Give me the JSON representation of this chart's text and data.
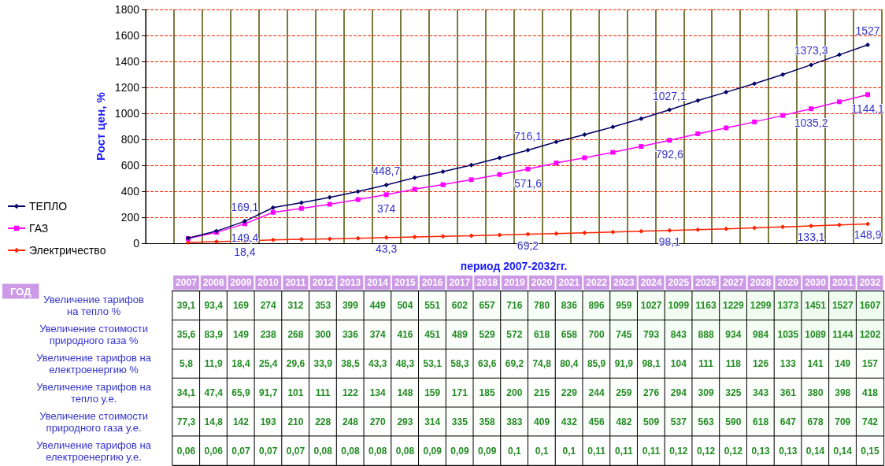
{
  "chart_data": [
    {
      "type": "line",
      "xlabel": "период 2007-2032гг.",
      "ylabel": "Рост цен, %",
      "categories": [
        null,
        null,
        null,
        null,
        null,
        null,
        null,
        null,
        null,
        null,
        null,
        null,
        null,
        null,
        null,
        null,
        null,
        null,
        null,
        null,
        null,
        null,
        null,
        null,
        null,
        null
      ],
      "series": [
        {
          "name": "ТЕПЛО",
          "color": "#000066",
          "marker": "diamond",
          "values": [
            null,
            39.1,
            93.4,
            169.1,
            274,
            312,
            353,
            399,
            448.7,
            504,
            551,
            602,
            657,
            716.1,
            780,
            836,
            896,
            959,
            1027.1,
            1099,
            1163,
            1229,
            1299,
            1373.3,
            1451,
            1527
          ],
          "value_labels": [
            null,
            null,
            null,
            "169,1",
            null,
            null,
            null,
            null,
            "448,7",
            null,
            null,
            null,
            null,
            "716,1",
            null,
            null,
            null,
            null,
            "1027,1",
            null,
            null,
            null,
            null,
            "1373,3",
            null,
            "1527"
          ]
        },
        {
          "name": "ГАЗ",
          "color": "#ff00ff",
          "marker": "square",
          "values": [
            null,
            35.6,
            83.9,
            149.4,
            238,
            268,
            300,
            336,
            374,
            416,
            451,
            489,
            529,
            571.6,
            618,
            658,
            700,
            745,
            792.6,
            843,
            888,
            934,
            984,
            1035.2,
            1089,
            1144.1
          ],
          "value_labels": [
            null,
            null,
            null,
            "149,4",
            null,
            null,
            null,
            null,
            "374",
            null,
            null,
            null,
            null,
            "571,6",
            null,
            null,
            null,
            null,
            "792,6",
            null,
            null,
            null,
            null,
            "1035,2",
            null,
            "1144,1"
          ]
        },
        {
          "name": "Электричество",
          "color": "#ff2200",
          "marker": "diamond",
          "values": [
            null,
            5.8,
            11.9,
            18.4,
            25.4,
            29.6,
            33.9,
            38.5,
            43.3,
            48.3,
            53.1,
            58.3,
            63.6,
            69.2,
            74.8,
            80.4,
            85.9,
            91.9,
            98.1,
            104,
            111,
            118,
            126,
            133.1,
            141,
            148.9
          ],
          "value_labels": [
            null,
            null,
            null,
            "18,4",
            null,
            null,
            null,
            null,
            "43,3",
            null,
            null,
            null,
            null,
            "69,2",
            null,
            null,
            null,
            null,
            "98,1",
            null,
            null,
            null,
            null,
            "133,1",
            null,
            "148,9"
          ]
        }
      ],
      "ylim": [
        0,
        1800
      ],
      "yticks": [
        0,
        200,
        400,
        600,
        800,
        1000,
        1200,
        1400,
        1600,
        1800
      ],
      "grid": true,
      "legend": "left",
      "tick_labels": "y",
      "line_style": "solid"
    },
    {
      "type": "heatmap",
      "xlabel": "ГОД",
      "categories": [
        "2007",
        "2008",
        "2009",
        "2010",
        "2011",
        "2012",
        "2013",
        "2014",
        "2015",
        "2016",
        "2017",
        "2018",
        "2019",
        "2020",
        "2021",
        "2022",
        "2023",
        "2024",
        "2025",
        "2026",
        "2027",
        "2028",
        "2029",
        "2030",
        "2031",
        "2032"
      ],
      "y_categories": [
        "Увеличение тарифов на тепло %",
        "Увеличение стоимости природного газа %",
        "Увеличение тарифов на електроенергию %",
        "Увеличение тарифов на тепло у.е.",
        "Увеличение стоимости природного газа у.е.",
        "Увеличение тарифов на електроенергию у.е."
      ],
      "cells": [
        [
          39.1,
          93.4,
          169,
          274,
          312,
          353,
          399,
          449,
          504,
          551,
          602,
          657,
          716,
          780,
          836,
          896,
          959,
          1027,
          1099,
          1163,
          1229,
          1299,
          1373,
          1451,
          1527,
          1607
        ],
        [
          35.6,
          83.9,
          149,
          238,
          268,
          300,
          336,
          374,
          416,
          451,
          489,
          529,
          572,
          618,
          658,
          700,
          745,
          793,
          843,
          888,
          934,
          984,
          1035,
          1089,
          1144,
          1202
        ],
        [
          5.8,
          11.9,
          18.4,
          25.4,
          29.6,
          33.9,
          38.5,
          43.3,
          48.3,
          53.1,
          58.3,
          63.6,
          69.2,
          74.8,
          80.4,
          85.9,
          91.9,
          98.1,
          104,
          111,
          118,
          126,
          133,
          141,
          149,
          157
        ],
        [
          34.1,
          47.4,
          65.9,
          91.7,
          101,
          111,
          122,
          134,
          148,
          159,
          171,
          185,
          200,
          215,
          229,
          244,
          259,
          276,
          294,
          309,
          325,
          343,
          361,
          380,
          398,
          418
        ],
        [
          77.3,
          14.8,
          142,
          193,
          210,
          228,
          248,
          270,
          293,
          314,
          335,
          358,
          383,
          409,
          432,
          456,
          482,
          509,
          537,
          563,
          590,
          618,
          647,
          678,
          709,
          742
        ],
        [
          0.06,
          0.06,
          0.07,
          0.07,
          0.07,
          0.08,
          0.08,
          0.08,
          0.08,
          0.09,
          0.09,
          0.09,
          0.1,
          0.1,
          0.1,
          0.11,
          0.11,
          0.11,
          0.12,
          0.12,
          0.12,
          0.13,
          0.13,
          0.14,
          0.14,
          0.15
        ]
      ],
      "cell_labels": [
        [
          "39,1",
          "93,4",
          "169",
          "274",
          "312",
          "353",
          "399",
          "449",
          "504",
          "551",
          "602",
          "657",
          "716",
          "780",
          "836",
          "896",
          "959",
          "1027",
          "1099",
          "1163",
          "1229",
          "1299",
          "1373",
          "1451",
          "1527",
          "1607"
        ],
        [
          "35,6",
          "83,9",
          "149",
          "238",
          "268",
          "300",
          "336",
          "374",
          "416",
          "451",
          "489",
          "529",
          "572",
          "618",
          "658",
          "700",
          "745",
          "793",
          "843",
          "888",
          "934",
          "984",
          "1035",
          "1089",
          "1144",
          "1202"
        ],
        [
          "5,8",
          "11,9",
          "18,4",
          "25,4",
          "29,6",
          "33,9",
          "38,5",
          "43,3",
          "48,3",
          "53,1",
          "58,3",
          "63,6",
          "69,2",
          "74,8",
          "80,4",
          "85,9",
          "91,9",
          "98,1",
          "104",
          "111",
          "118",
          "126",
          "133",
          "141",
          "149",
          "157"
        ],
        [
          "34,1",
          "47,4",
          "65,9",
          "91,7",
          "101",
          "111",
          "122",
          "134",
          "148",
          "159",
          "171",
          "185",
          "200",
          "215",
          "229",
          "244",
          "259",
          "276",
          "294",
          "309",
          "325",
          "343",
          "361",
          "380",
          "398",
          "418"
        ],
        [
          "77,3",
          "14,8",
          "142",
          "193",
          "210",
          "228",
          "248",
          "270",
          "293",
          "314",
          "335",
          "358",
          "383",
          "409",
          "432",
          "456",
          "482",
          "509",
          "537",
          "563",
          "590",
          "618",
          "647",
          "678",
          "709",
          "742"
        ],
        [
          "0,06",
          "0,06",
          "0,07",
          "0,07",
          "0,07",
          "0,08",
          "0,08",
          "0,08",
          "0,08",
          "0,09",
          "0,09",
          "0,09",
          "0,1",
          "0,1",
          "0,1",
          "0,11",
          "0,11",
          "0,11",
          "0,12",
          "0,12",
          "0,12",
          "0,13",
          "0,13",
          "0,14",
          "0,14",
          "0,15"
        ]
      ]
    }
  ]
}
